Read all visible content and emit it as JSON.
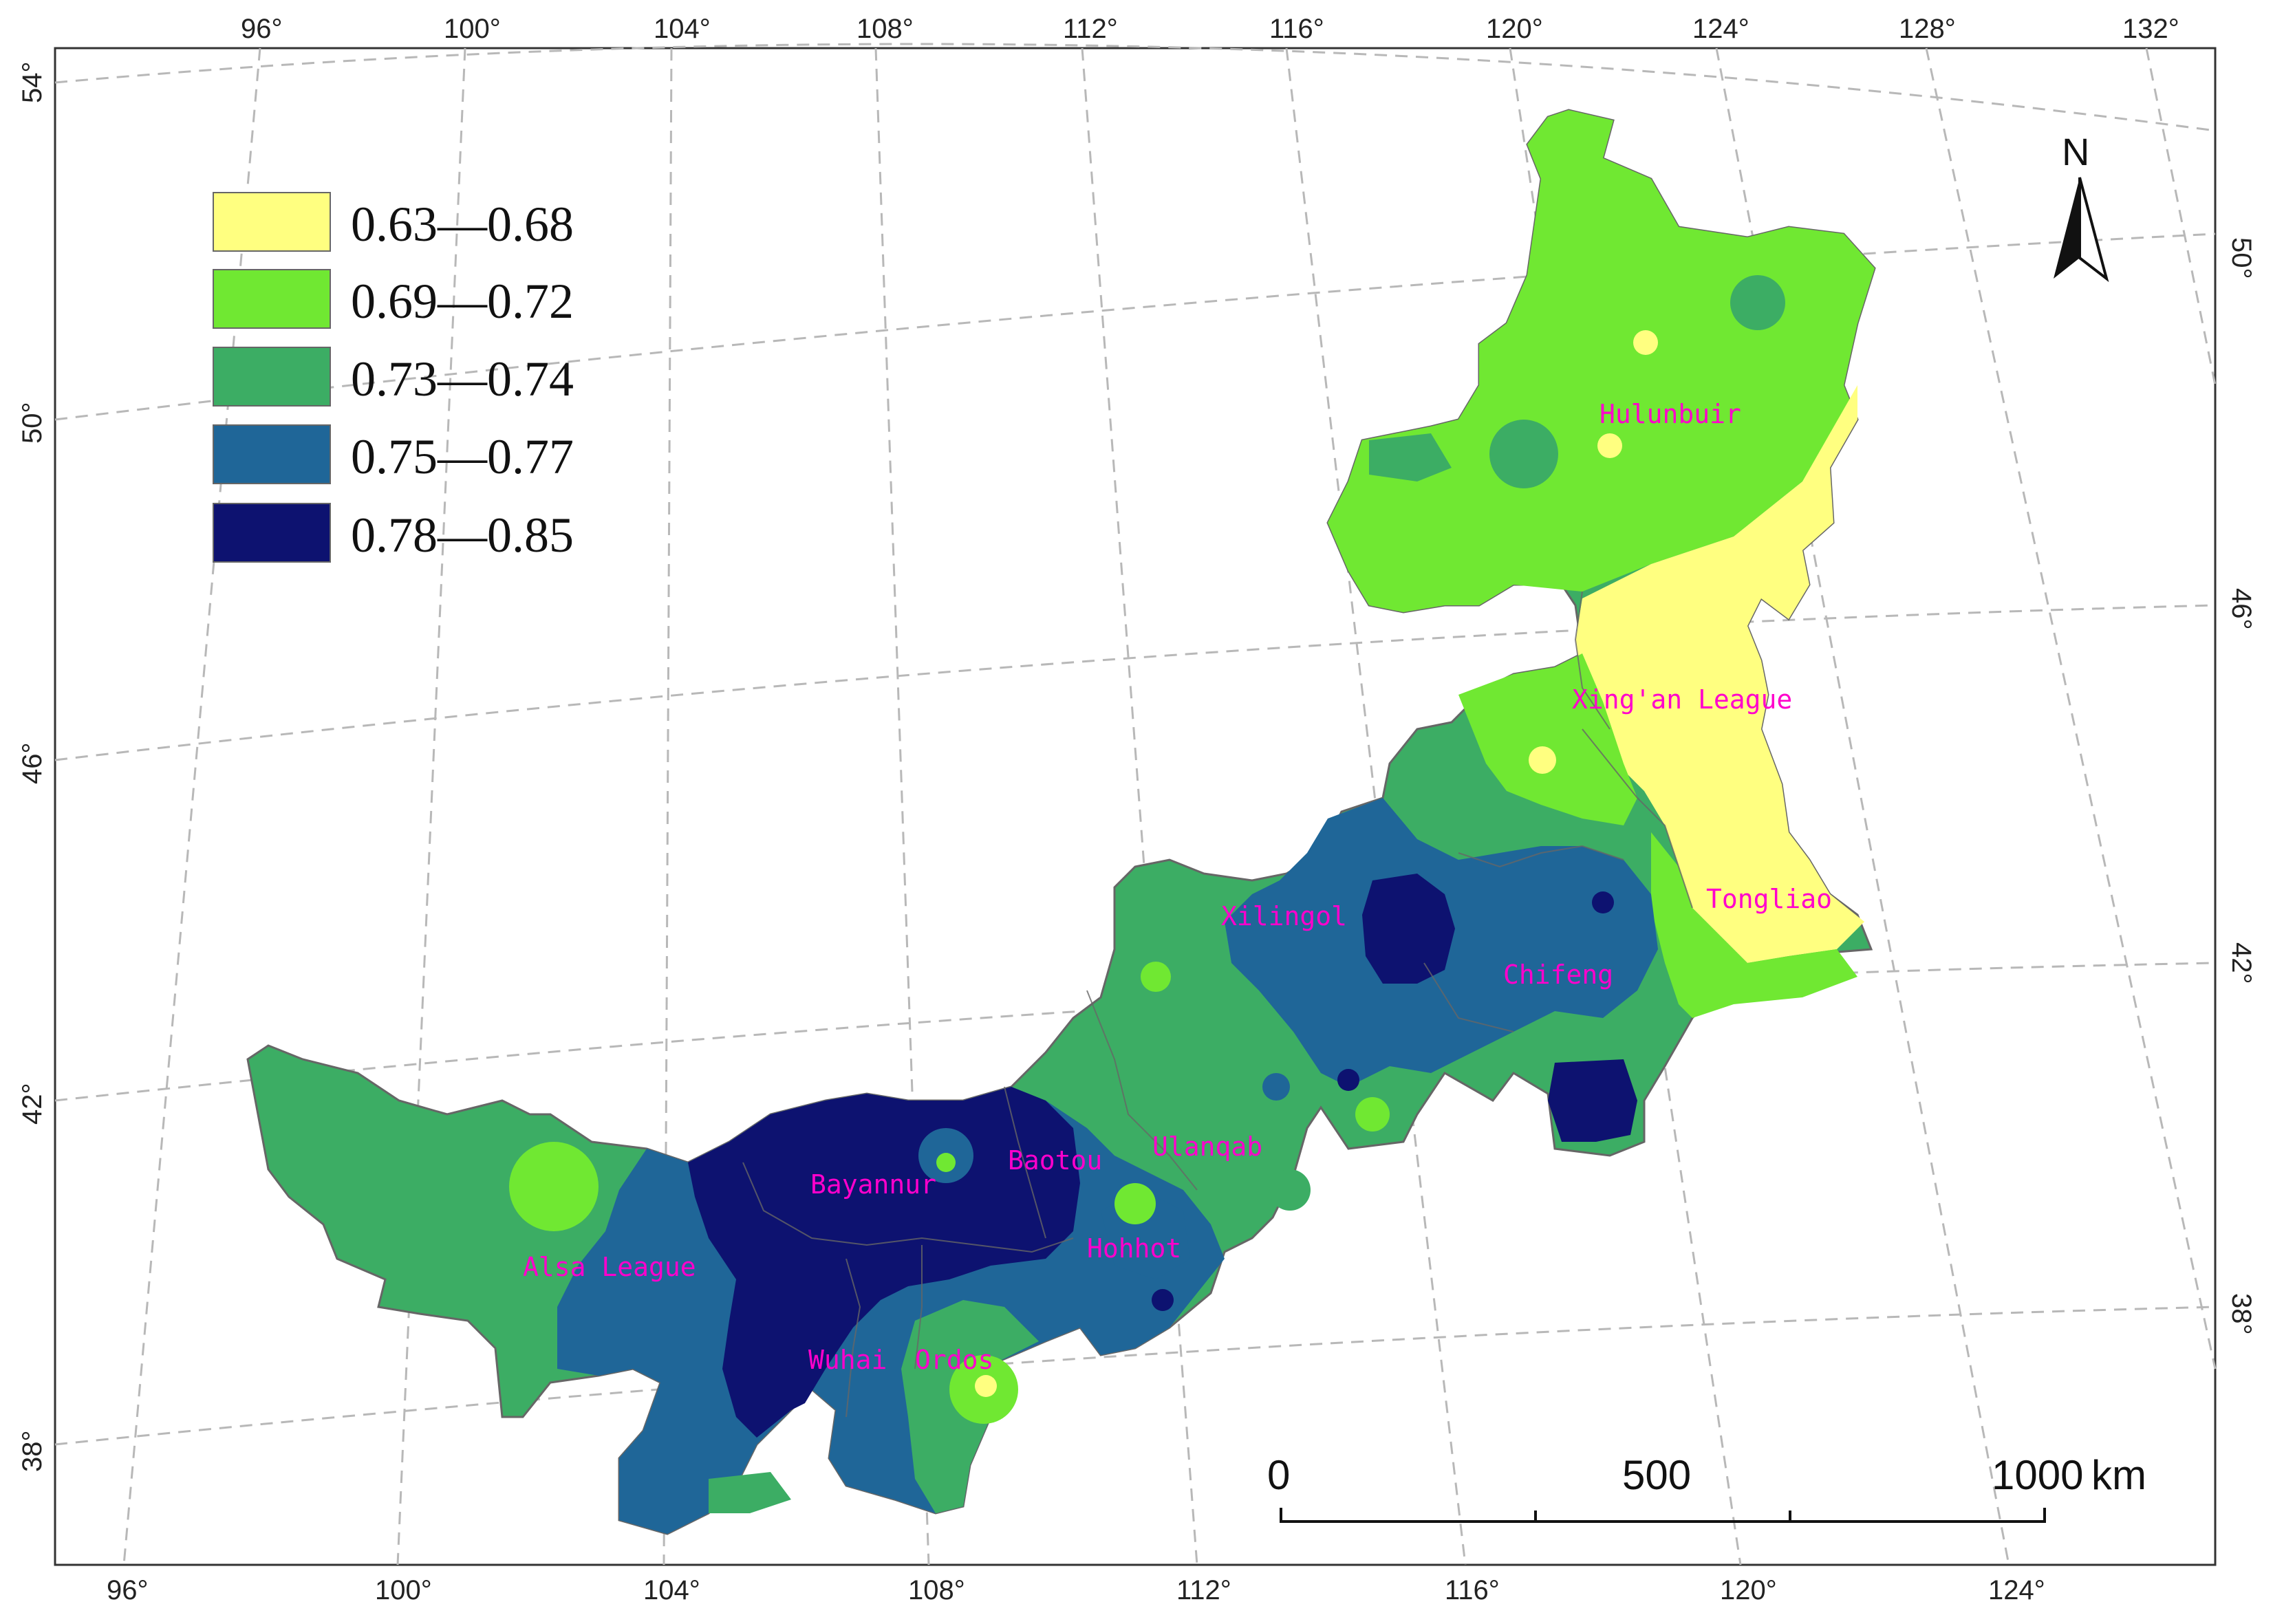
{
  "top_ticks": [
    "96°",
    "100°",
    "104°",
    "108°",
    "112°",
    "116°",
    "120°",
    "124°",
    "128°",
    "132°"
  ],
  "bottom_ticks": [
    "96°",
    "100°",
    "104°",
    "108°",
    "112°",
    "116°",
    "120°",
    "124°"
  ],
  "left_ticks": [
    "54°",
    "50°",
    "46°",
    "42°",
    "38°"
  ],
  "right_ticks": [
    "50°",
    "46°",
    "42°",
    "38°"
  ],
  "legend": [
    {
      "label": "0.63—0.68",
      "color": "#ffff80"
    },
    {
      "label": "0.69—0.72",
      "color": "#70e832"
    },
    {
      "label": "0.73—0.74",
      "color": "#3cad64"
    },
    {
      "label": "0.75—0.77",
      "color": "#1f6698"
    },
    {
      "label": "0.78—0.85",
      "color": "#0d1270"
    }
  ],
  "north": "N",
  "scale": {
    "zero": "0",
    "mid": "500",
    "end": "1000",
    "unit": "km"
  },
  "regions": [
    "Hulunbuir",
    "Xing'an League",
    "Tongliao",
    "Chifeng",
    "Xilingol",
    "Ulanqab",
    "Baotou",
    "Bayannur",
    "Hohhot",
    "Alsa League",
    "Wuhai",
    "Ordos"
  ],
  "colors": {
    "border": "#555555",
    "graticule": "#b0b0b0",
    "label": "#ff00cc"
  }
}
